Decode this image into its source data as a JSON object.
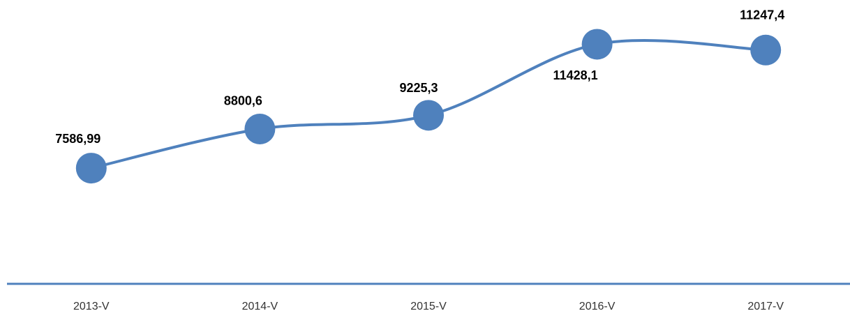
{
  "chart_data": {
    "type": "line",
    "categories": [
      "2013-V",
      "2014-V",
      "2015-V",
      "2016-V",
      "2017-V"
    ],
    "values": [
      7586.99,
      8800.6,
      9225.3,
      11428.1,
      11247.4
    ],
    "value_labels": [
      "7586,99",
      "8800,6",
      "9225,3",
      "11428,1",
      "11247,4"
    ],
    "color": "#4f81bd",
    "ylim": [
      4000,
      12000
    ]
  }
}
